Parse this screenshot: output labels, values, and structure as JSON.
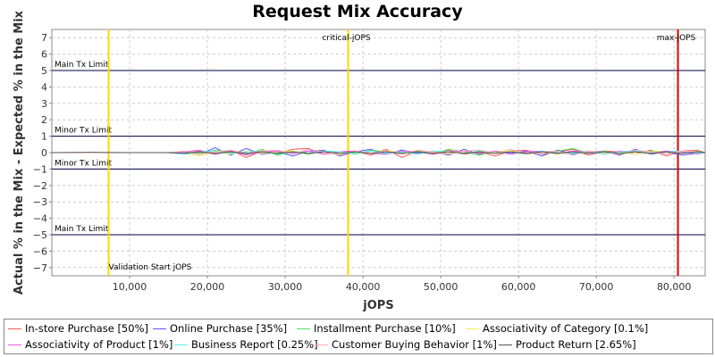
{
  "chart_data": {
    "type": "line",
    "title": "Request Mix Accuracy",
    "xlabel": "jOPS",
    "ylabel": "Actual % in the Mix - Expected % in the Mix",
    "xlim": [
      0,
      84000
    ],
    "ylim": [
      -7.5,
      7.5
    ],
    "x_ticks": [
      10000,
      20000,
      30000,
      40000,
      50000,
      60000,
      70000,
      80000
    ],
    "x_tick_labels": [
      "10,000",
      "20,000",
      "30,000",
      "40,000",
      "50,000",
      "60,000",
      "70,000",
      "80,000"
    ],
    "y_ticks": [
      -7,
      -6,
      -5,
      -4,
      -3,
      -2,
      -1,
      0,
      1,
      2,
      3,
      4,
      5,
      6,
      7
    ],
    "y_tick_labels": [
      "−7",
      "−6",
      "−5",
      "−4",
      "−3",
      "−2",
      "−1",
      "0",
      "1",
      "2",
      "3",
      "4",
      "5",
      "6",
      "7"
    ],
    "grid": true,
    "legend_position": "bottom",
    "limit_lines": [
      {
        "label": "Main Tx Limit",
        "y": 5
      },
      {
        "label": "Minor Tx Limit",
        "y": 1
      },
      {
        "label": "Minor Tx Limit",
        "y": -1
      },
      {
        "label": "Main Tx Limit",
        "y": -5
      }
    ],
    "markers": [
      {
        "label": "Validation Start jOPS",
        "x": 7300,
        "color": "#ffd700"
      },
      {
        "label": "critical-jOPS",
        "x": 38100,
        "color": "#ffd700"
      },
      {
        "label": "max-jOPS",
        "x": 80500,
        "color": "#e00000"
      }
    ],
    "series": [
      {
        "name": "In-store Purchase [50%]",
        "color": "#ff5555",
        "x": [
          0,
          5000,
          10000,
          15000,
          17000,
          19000,
          21000,
          23000,
          25000,
          27000,
          29000,
          31000,
          33000,
          35000,
          37000,
          39000,
          41000,
          43000,
          45000,
          47000,
          49000,
          51000,
          53000,
          55000,
          57000,
          59000,
          61000,
          63000,
          65000,
          67000,
          69000,
          71000,
          73000,
          75000,
          77000,
          79000,
          81000,
          83000,
          84000
        ],
        "values": [
          0,
          0,
          0,
          0,
          -0.05,
          0.1,
          -0.1,
          0.15,
          -0.3,
          0.1,
          -0.05,
          0.2,
          0.25,
          -0.1,
          0.05,
          0.1,
          -0.15,
          0.2,
          -0.3,
          0.1,
          -0.05,
          0.15,
          -0.1,
          0.05,
          -0.2,
          0.1,
          0.15,
          -0.1,
          0.05,
          0.2,
          -0.15,
          0.1,
          0.05,
          -0.1,
          0.15,
          -0.2,
          0.1,
          0.15,
          0
        ]
      },
      {
        "name": "Online Purchase [35%]",
        "color": "#5555ff",
        "x": [
          0,
          5000,
          10000,
          15000,
          17000,
          19000,
          21000,
          23000,
          25000,
          27000,
          29000,
          31000,
          33000,
          35000,
          37000,
          39000,
          41000,
          43000,
          45000,
          47000,
          49000,
          51000,
          53000,
          55000,
          57000,
          59000,
          61000,
          63000,
          65000,
          67000,
          69000,
          71000,
          73000,
          75000,
          77000,
          79000,
          81000,
          83000,
          84000
        ],
        "values": [
          0,
          0,
          0,
          0,
          0.05,
          -0.1,
          0.3,
          -0.15,
          0.25,
          -0.1,
          0.05,
          -0.2,
          0.1,
          0.15,
          -0.2,
          0.05,
          0.2,
          -0.1,
          0.15,
          -0.05,
          0.1,
          -0.15,
          0.2,
          -0.1,
          0.05,
          -0.05,
          0.1,
          -0.2,
          0.15,
          -0.1,
          0.05,
          0.1,
          -0.15,
          0.2,
          -0.1,
          0.05,
          -0.15,
          -0.05,
          0
        ]
      },
      {
        "name": "Installment Purchase [10%]",
        "color": "#55dd55",
        "x": [
          0,
          5000,
          10000,
          15000,
          17000,
          19000,
          21000,
          23000,
          25000,
          27000,
          29000,
          31000,
          33000,
          35000,
          37000,
          39000,
          41000,
          43000,
          45000,
          47000,
          49000,
          51000,
          53000,
          55000,
          57000,
          59000,
          61000,
          63000,
          65000,
          67000,
          69000,
          71000,
          73000,
          75000,
          77000,
          79000,
          81000,
          83000,
          84000
        ],
        "values": [
          0,
          0,
          0,
          0,
          0.1,
          -0.05,
          0.15,
          0.05,
          -0.1,
          0.2,
          -0.15,
          0.05,
          -0.1,
          0.1,
          0.05,
          -0.1,
          0.15,
          0.05,
          -0.05,
          0.1,
          -0.1,
          0.2,
          0.05,
          -0.15,
          0.1,
          0.05,
          -0.1,
          0.05,
          0.1,
          0.25,
          -0.05,
          0.1,
          -0.1,
          0.05,
          0.1,
          0.05,
          -0.05,
          0.1,
          0
        ]
      },
      {
        "name": "Associativity of Category [0.1%]",
        "color": "#eeee55",
        "x": [
          0,
          5000,
          10000,
          15000,
          17000,
          19000,
          21000,
          23000,
          25000,
          27000,
          29000,
          31000,
          33000,
          35000,
          37000,
          39000,
          41000,
          43000,
          45000,
          47000,
          49000,
          51000,
          53000,
          55000,
          57000,
          59000,
          61000,
          63000,
          65000,
          67000,
          69000,
          71000,
          73000,
          75000,
          77000,
          79000,
          81000,
          83000,
          84000
        ],
        "values": [
          0,
          0,
          0,
          0,
          -0.05,
          -0.2,
          0.05,
          -0.1,
          0.1,
          -0.05,
          0.05,
          0.1,
          -0.05,
          0.05,
          -0.1,
          0.05,
          -0.05,
          0.1,
          0.05,
          -0.1,
          0.05,
          -0.05,
          0.1,
          -0.05,
          0.05,
          0.1,
          -0.05,
          0.05,
          -0.1,
          0.05,
          0.1,
          -0.05,
          0.05,
          -0.1,
          0.05,
          0.1,
          -0.05,
          0.05,
          0
        ]
      },
      {
        "name": "Associativity of Product [1%]",
        "color": "#ee55ee",
        "x": [
          0,
          5000,
          10000,
          15000,
          17000,
          19000,
          21000,
          23000,
          25000,
          27000,
          29000,
          31000,
          33000,
          35000,
          37000,
          39000,
          41000,
          43000,
          45000,
          47000,
          49000,
          51000,
          53000,
          55000,
          57000,
          59000,
          61000,
          63000,
          65000,
          67000,
          69000,
          71000,
          73000,
          75000,
          77000,
          79000,
          81000,
          83000,
          84000
        ],
        "values": [
          0,
          0,
          0,
          0,
          0.05,
          0.15,
          -0.1,
          0.1,
          -0.15,
          0.05,
          0.1,
          -0.05,
          0.1,
          -0.1,
          0.05,
          0.1,
          -0.05,
          -0.1,
          0.1,
          0.05,
          -0.1,
          0.05,
          0.1,
          -0.05,
          0.1,
          -0.1,
          0.05,
          0.1,
          -0.05,
          0.1,
          0.05,
          -0.1,
          0.1,
          0.05,
          -0.05,
          0.1,
          0.05,
          -0.1,
          0
        ]
      },
      {
        "name": "Business Report [0.25%]",
        "color": "#55eeee",
        "x": [
          0,
          5000,
          10000,
          15000,
          17000,
          19000,
          21000,
          23000,
          25000,
          27000,
          29000,
          31000,
          33000,
          35000,
          37000,
          39000,
          41000,
          43000,
          45000,
          47000,
          49000,
          51000,
          53000,
          55000,
          57000,
          59000,
          61000,
          63000,
          65000,
          67000,
          69000,
          71000,
          73000,
          75000,
          77000,
          79000,
          81000,
          83000,
          84000
        ],
        "values": [
          0,
          0,
          0,
          0,
          -0.1,
          0.05,
          0.1,
          -0.05,
          0.05,
          0.1,
          -0.1,
          0.05,
          -0.05,
          0.1,
          0.05,
          -0.05,
          0.1,
          -0.05,
          0.05,
          -0.1,
          0.1,
          0.05,
          -0.05,
          0.1,
          -0.05,
          0.05,
          -0.1,
          0.1,
          0.05,
          -0.05,
          0.1,
          -0.1,
          0.05,
          0.1,
          -0.05,
          0.05,
          0.1,
          -0.05,
          0
        ]
      },
      {
        "name": "Customer Buying Behavior [1%]",
        "color": "#ffaaaa",
        "x": [
          0,
          5000,
          10000,
          15000,
          17000,
          19000,
          21000,
          23000,
          25000,
          27000,
          29000,
          31000,
          33000,
          35000,
          37000,
          39000,
          41000,
          43000,
          45000,
          47000,
          49000,
          51000,
          53000,
          55000,
          57000,
          59000,
          61000,
          63000,
          65000,
          67000,
          69000,
          71000,
          73000,
          75000,
          77000,
          79000,
          81000,
          83000,
          84000
        ],
        "values": [
          0,
          0,
          0,
          0,
          0.1,
          -0.1,
          0.05,
          0.15,
          -0.05,
          0.1,
          0.15,
          -0.1,
          0.2,
          0.05,
          -0.15,
          0.1,
          -0.05,
          0.1,
          -0.1,
          0.15,
          0.05,
          -0.1,
          0.1,
          0.15,
          -0.05,
          0.2,
          -0.1,
          0.05,
          0.1,
          -0.15,
          0.1,
          0.05,
          -0.1,
          0.15,
          0.05,
          -0.1,
          0.1,
          0.05,
          0
        ]
      },
      {
        "name": "Product Return [2.65%]",
        "color": "#555555",
        "x": [
          0,
          5000,
          10000,
          15000,
          17000,
          19000,
          21000,
          23000,
          25000,
          27000,
          29000,
          31000,
          33000,
          35000,
          37000,
          39000,
          41000,
          43000,
          45000,
          47000,
          49000,
          51000,
          53000,
          55000,
          57000,
          59000,
          61000,
          63000,
          65000,
          67000,
          69000,
          71000,
          73000,
          75000,
          77000,
          79000,
          81000,
          83000,
          84000
        ],
        "values": [
          0,
          0.02,
          0,
          0,
          -0.05,
          0.05,
          -0.05,
          0.05,
          -0.05,
          0.05,
          -0.05,
          0.05,
          -0.05,
          0.05,
          -0.05,
          0.05,
          -0.05,
          0.05,
          -0.05,
          0.05,
          -0.05,
          0.05,
          -0.05,
          0.05,
          -0.05,
          0.05,
          -0.05,
          0.05,
          -0.05,
          0.05,
          -0.05,
          0.05,
          -0.05,
          0.05,
          -0.05,
          0.05,
          -0.05,
          0.05,
          0
        ]
      }
    ]
  }
}
